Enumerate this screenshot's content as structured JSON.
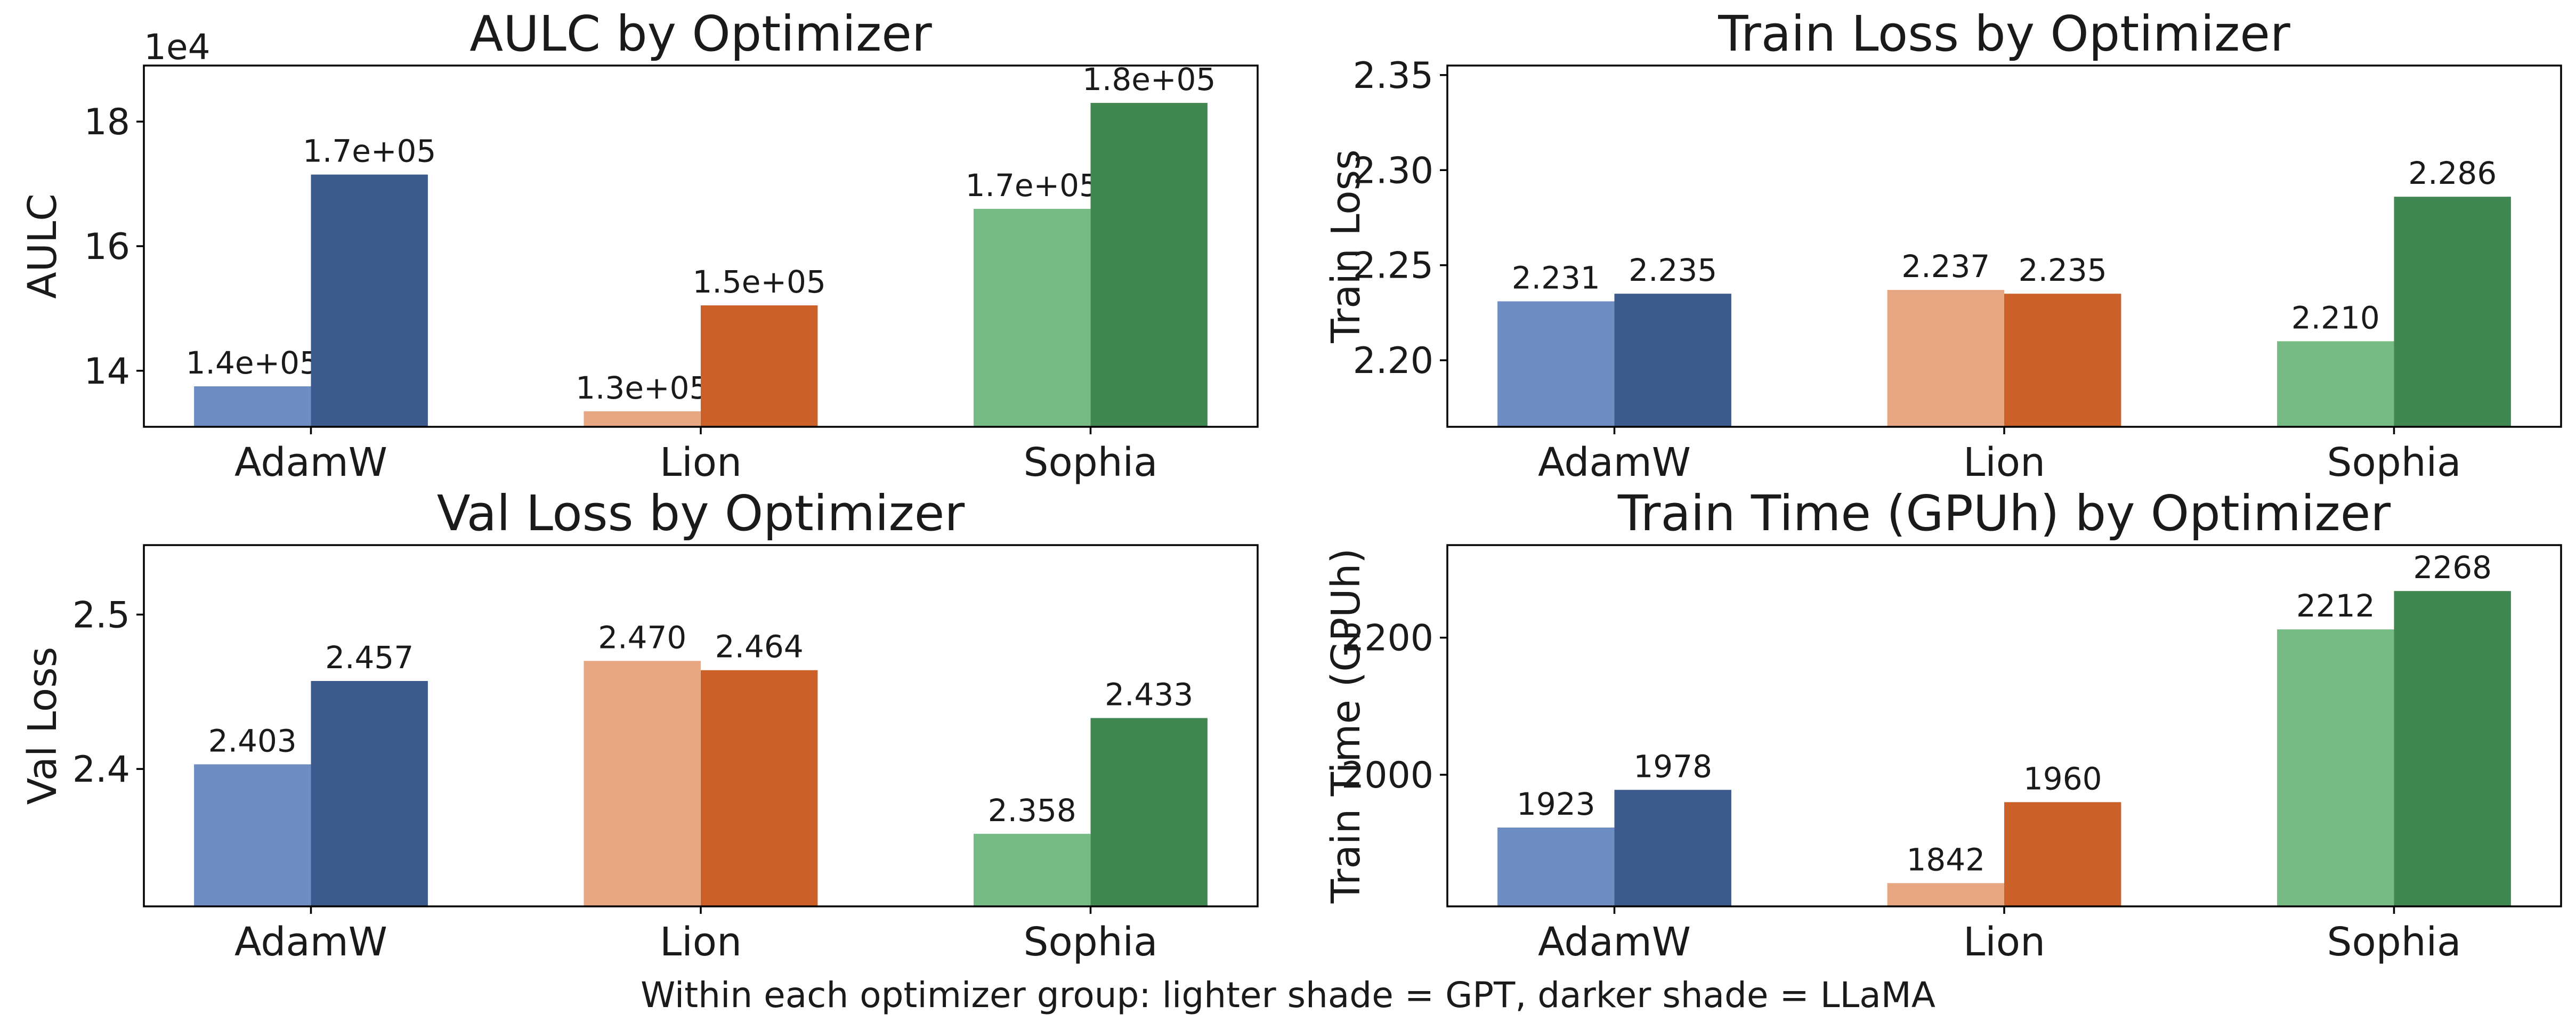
{
  "palette": {
    "AdamW": {
      "light": "#6e8ec3",
      "dark": "#3c5a8b"
    },
    "Lion": {
      "light": "#e7a782",
      "dark": "#cb6128"
    },
    "Sophia": {
      "light": "#77bb84",
      "dark": "#418751"
    }
  },
  "caption": "Within each optimizer group: lighter shade = GPT, darker shade = LLaMA",
  "chart_data": [
    {
      "type": "bar",
      "title": "AULC by Optimizer",
      "xlabel": "",
      "ylabel": "AULC",
      "scale_label": "1e4",
      "categories": [
        "AdamW",
        "Lion",
        "Sophia"
      ],
      "series": [
        {
          "name": "GPT",
          "shade": "light",
          "values": [
            13.75,
            13.35,
            16.6
          ],
          "labels": [
            "1.4e+05",
            "1.3e+05",
            "1.7e+05"
          ]
        },
        {
          "name": "LLaMA",
          "shade": "dark",
          "values": [
            17.15,
            15.05,
            18.3
          ],
          "labels": [
            "1.7e+05",
            "1.5e+05",
            "1.8e+05"
          ]
        }
      ],
      "ylim": [
        13.1,
        18.9
      ],
      "yticks": [
        14,
        16,
        18
      ],
      "ytick_labels": [
        "14",
        "16",
        "18"
      ]
    },
    {
      "type": "bar",
      "title": "Train Loss by Optimizer",
      "xlabel": "",
      "ylabel": "Train Loss",
      "categories": [
        "AdamW",
        "Lion",
        "Sophia"
      ],
      "series": [
        {
          "name": "GPT",
          "shade": "light",
          "values": [
            2.231,
            2.237,
            2.21
          ],
          "labels": [
            "2.231",
            "2.237",
            "2.210"
          ]
        },
        {
          "name": "LLaMA",
          "shade": "dark",
          "values": [
            2.235,
            2.235,
            2.286
          ],
          "labels": [
            "2.235",
            "2.235",
            "2.286"
          ]
        }
      ],
      "ylim": [
        2.165,
        2.355
      ],
      "yticks": [
        2.2,
        2.25,
        2.3,
        2.35
      ],
      "ytick_labels": [
        "2.20",
        "2.25",
        "2.30",
        "2.35"
      ]
    },
    {
      "type": "bar",
      "title": "Val Loss by Optimizer",
      "xlabel": "",
      "ylabel": "Val Loss",
      "categories": [
        "AdamW",
        "Lion",
        "Sophia"
      ],
      "series": [
        {
          "name": "GPT",
          "shade": "light",
          "values": [
            2.403,
            2.47,
            2.358
          ],
          "labels": [
            "2.403",
            "2.470",
            "2.358"
          ]
        },
        {
          "name": "LLaMA",
          "shade": "dark",
          "values": [
            2.457,
            2.464,
            2.433
          ],
          "labels": [
            "2.457",
            "2.464",
            "2.433"
          ]
        }
      ],
      "ylim": [
        2.311,
        2.545
      ],
      "yticks": [
        2.4,
        2.5
      ],
      "ytick_labels": [
        "2.4",
        "2.5"
      ]
    },
    {
      "type": "bar",
      "title": "Train Time (GPUh) by Optimizer",
      "xlabel": "",
      "ylabel": "Train Time (GPUh)",
      "categories": [
        "AdamW",
        "Lion",
        "Sophia"
      ],
      "series": [
        {
          "name": "GPT",
          "shade": "light",
          "values": [
            1923,
            1842,
            2212
          ],
          "labels": [
            "1923",
            "1842",
            "2212"
          ]
        },
        {
          "name": "LLaMA",
          "shade": "dark",
          "values": [
            1978,
            1960,
            2268
          ],
          "labels": [
            "1978",
            "1960",
            "2268"
          ]
        }
      ],
      "ylim": [
        1808,
        2335
      ],
      "yticks": [
        2000,
        2200
      ],
      "ytick_labels": [
        "2000",
        "2200"
      ]
    }
  ]
}
